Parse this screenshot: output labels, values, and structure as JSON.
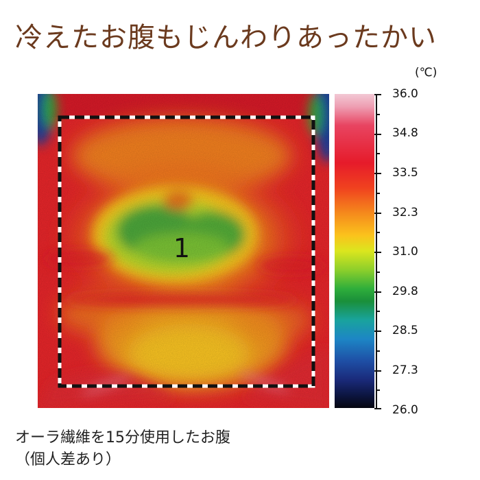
{
  "title": "冷えたお腹もじんわりあったかい",
  "thermogram": {
    "region_label": "1"
  },
  "scale": {
    "unit": "(℃)",
    "labels": [
      "36.0",
      "34.8",
      "33.5",
      "32.3",
      "31.0",
      "29.8",
      "28.5",
      "27.3",
      "26.0"
    ],
    "min": 26.0,
    "max": 36.0
  },
  "captions": {
    "line1": "オーラ繊維を15分使用したお腹",
    "line2": "（個人差あり）"
  },
  "colors": {
    "title": "#6b3a1e",
    "hot": "#e61b2a",
    "warm": "#f58a1c",
    "mid": "#fbc21c",
    "cool": "#2fae3b",
    "cold": "#1a2a7a"
  }
}
